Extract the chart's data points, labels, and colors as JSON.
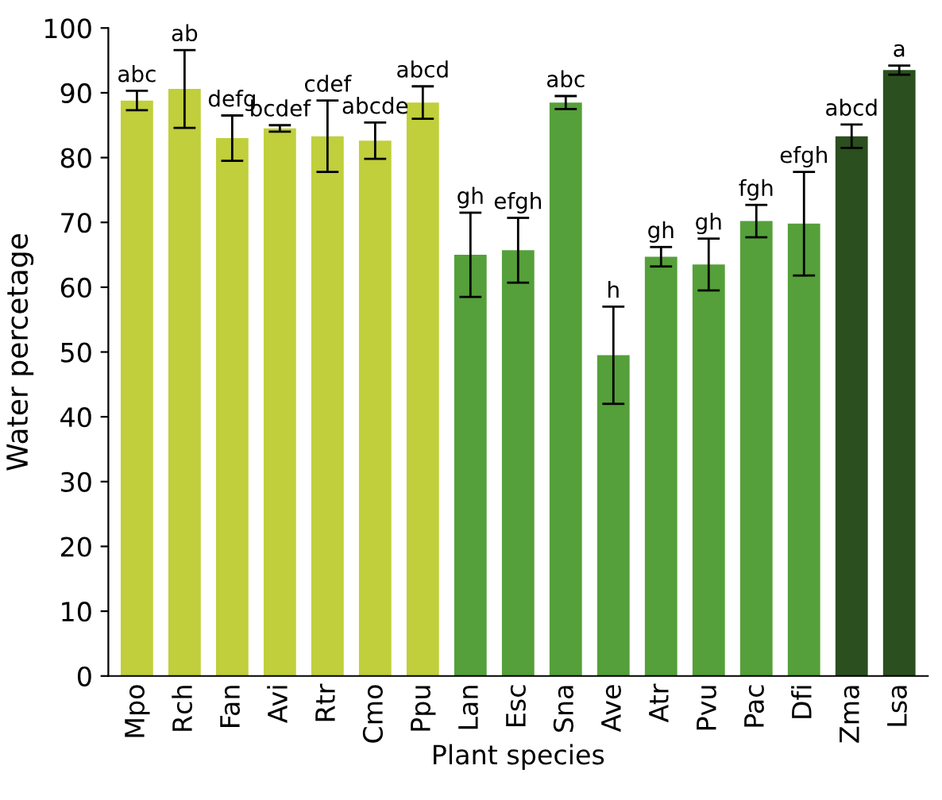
{
  "chart_data": {
    "type": "bar",
    "xlabel": "Plant species",
    "ylabel": "Water percetage",
    "categories": [
      "Mpo",
      "Rch",
      "Fan",
      "Avi",
      "Rtr",
      "Cmo",
      "Ppu",
      "Lan",
      "Esc",
      "Sna",
      "Ave",
      "Atr",
      "Pvu",
      "Pac",
      "Dfi",
      "Zma",
      "Lsa"
    ],
    "values": [
      88.8,
      90.6,
      83,
      84.5,
      83.3,
      82.6,
      88.5,
      65,
      65.7,
      88.5,
      49.5,
      64.7,
      63.5,
      70.2,
      69.8,
      83.3,
      93.5
    ],
    "errors": [
      1.5,
      6,
      3.5,
      0.5,
      5.5,
      2.8,
      2.5,
      6.5,
      5,
      1,
      7.5,
      1.5,
      4,
      2.5,
      8,
      1.8,
      0.7
    ],
    "colors": [
      "#c0cf3b",
      "#c0cf3b",
      "#c0cf3b",
      "#c0cf3b",
      "#c0cf3b",
      "#c0cf3b",
      "#c0cf3b",
      "#55a03a",
      "#55a03a",
      "#55a03a",
      "#55a03a",
      "#55a03a",
      "#55a03a",
      "#55a03a",
      "#55a03a",
      "#2b4f1f",
      "#2b4f1f"
    ],
    "annotations": [
      {
        "text": "abc",
        "x": "Mpo",
        "y": 90.3
      },
      {
        "text": "ab",
        "x": "Rch",
        "y": 96.6
      },
      {
        "text": "defg",
        "x": "Fan",
        "y": 86.5
      },
      {
        "text": "bcdef",
        "x": "Avi",
        "y": 85
      },
      {
        "text": "cdef",
        "x": "Rtr",
        "y": 88.8
      },
      {
        "text": "abcde",
        "x": "Cmo",
        "y": 85.4
      },
      {
        "text": "abcd",
        "x": "Ppu",
        "y": 91
      },
      {
        "text": "gh",
        "x": "Lan",
        "y": 71.5
      },
      {
        "text": "efgh",
        "x": "Esc",
        "y": 70.7
      },
      {
        "text": "abc",
        "x": "Sna",
        "y": 89.5
      },
      {
        "text": "h",
        "x": "Ave",
        "y": 57
      },
      {
        "text": "gh",
        "x": "Atr",
        "y": 66.2
      },
      {
        "text": "gh",
        "x": "Pvu",
        "y": 67.5
      },
      {
        "text": "fgh",
        "x": "Pac",
        "y": 72.7
      },
      {
        "text": "efgh",
        "x": "Dfi",
        "y": 77.8
      },
      {
        "text": "abcd",
        "x": "Zma",
        "y": 85.1
      },
      {
        "text": "a",
        "x": "Lsa",
        "y": 94.2
      }
    ],
    "ylim": [
      0,
      100
    ],
    "yticks": [
      0,
      10,
      20,
      30,
      40,
      50,
      60,
      70,
      80,
      90,
      100
    ],
    "grid": false
  }
}
